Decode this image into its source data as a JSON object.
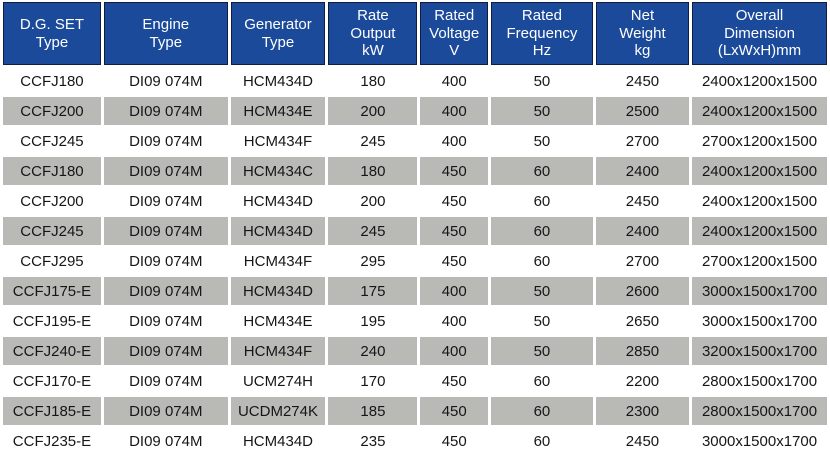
{
  "colors": {
    "header_bg": "#1b4a9b",
    "header_border": "#101c3d",
    "header_text": "#ffffff",
    "row_alt_bg": "#b9b9b6",
    "cell_text": "#161616"
  },
  "table": {
    "headers": [
      "D.G. SET\nType",
      "Engine\nType",
      "Generator\nType",
      "Rate\nOutput\nkW",
      "Rated\nVoltage\nV",
      "Rated\nFrequency\nHz",
      "Net\nWeight\nkg",
      "Overall\nDimension\n(LxWxH)mm"
    ],
    "rows": [
      {
        "cells": [
          "CCFJ180",
          "DI09 074M",
          "HCM434D",
          "180",
          "400",
          "50",
          "2450",
          "2400x1200x1500"
        ]
      },
      {
        "cells": [
          "CCFJ200",
          "DI09 074M",
          "HCM434E",
          "200",
          "400",
          "50",
          "2500",
          "2400x1200x1500"
        ]
      },
      {
        "cells": [
          "CCFJ245",
          "DI09 074M",
          "HCM434F",
          "245",
          "400",
          "50",
          "2700",
          "2700x1200x1500"
        ]
      },
      {
        "cells": [
          "CCFJ180",
          "DI09 074M",
          "HCM434C",
          "180",
          "450",
          "60",
          "2400",
          "2400x1200x1500"
        ]
      },
      {
        "cells": [
          "CCFJ200",
          "DI09 074M",
          "HCM434D",
          "200",
          "450",
          "60",
          "2450",
          "2400x1200x1500"
        ]
      },
      {
        "cells": [
          "CCFJ245",
          "DI09 074M",
          "HCM434D",
          "245",
          "450",
          "60",
          "2400",
          "2400x1200x1500"
        ]
      },
      {
        "cells": [
          "CCFJ295",
          "DI09 074M",
          "HCM434F",
          "295",
          "450",
          "60",
          "2700",
          "2700x1200x1500"
        ]
      },
      {
        "cells": [
          "CCFJ175-E",
          "DI09 074M",
          "HCM434D",
          "175",
          "400",
          "50",
          "2600",
          "3000x1500x1700"
        ]
      },
      {
        "cells": [
          "CCFJ195-E",
          "DI09 074M",
          "HCM434E",
          "195",
          "400",
          "50",
          "2650",
          "3000x1500x1700"
        ]
      },
      {
        "cells": [
          "CCFJ240-E",
          "DI09 074M",
          "HCM434F",
          "240",
          "400",
          "50",
          "2850",
          "3200x1500x1700"
        ]
      },
      {
        "cells": [
          "CCFJ170-E",
          "DI09 074M",
          "UCM274H",
          "170",
          "450",
          "60",
          "2200",
          "2800x1500x1700"
        ]
      },
      {
        "cells": [
          "CCFJ185-E",
          "DI09 074M",
          "UCDM274K",
          "185",
          "450",
          "60",
          "2300",
          "2800x1500x1700"
        ]
      },
      {
        "cells": [
          "CCFJ235-E",
          "DI09 074M",
          "HCM434D",
          "235",
          "450",
          "60",
          "2450",
          "3000x1500x1700"
        ]
      }
    ]
  }
}
